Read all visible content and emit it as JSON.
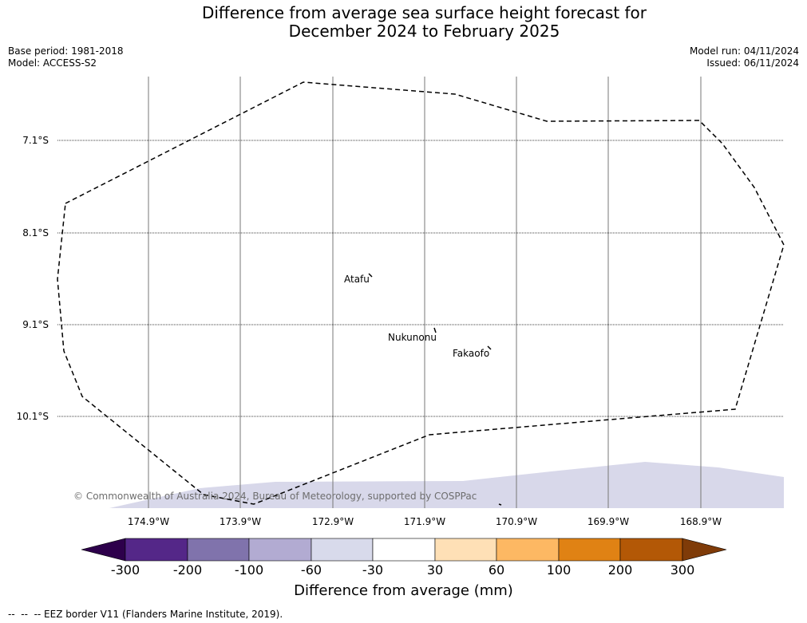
{
  "title": {
    "line1": "Difference from average sea surface height forecast for",
    "line2": "December 2024 to February 2025"
  },
  "meta": {
    "base_period": "Base period: 1981-2018",
    "model": "Model: ACCESS-S2",
    "model_run": "Model run: 04/11/2024",
    "issued": "Issued: 06/11/2024"
  },
  "map": {
    "latitudes": [
      "7.1°S",
      "8.1°S",
      "9.1°S",
      "10.1°S"
    ],
    "longitudes": [
      "174.9°W",
      "173.9°W",
      "172.9°W",
      "171.9°W",
      "170.9°W",
      "169.9°W",
      "168.9°W"
    ],
    "islands": [
      "Atafu",
      "Nukunonu",
      "Fakaofo"
    ],
    "copyright": "© Commonwealth of Australia 2024, Bureau of Meteorology, supported by COSPPac",
    "shading_color": "#d8d8ea"
  },
  "colorbar": {
    "title": "Difference from average (mm)",
    "ticks": [
      "-300",
      "-200",
      "-100",
      "-60",
      "-30",
      "30",
      "60",
      "100",
      "200",
      "300"
    ],
    "colors": [
      "#2d004b",
      "#542788",
      "#8073ac",
      "#b2abd2",
      "#d8daeb",
      "#ffffff",
      "#fee0b6",
      "#fdb863",
      "#e08214",
      "#b35806",
      "#7f3b08"
    ]
  },
  "footer": {
    "legend": "--  --  -- EEZ border V11 (Flanders Marine Institute, 2019)."
  }
}
